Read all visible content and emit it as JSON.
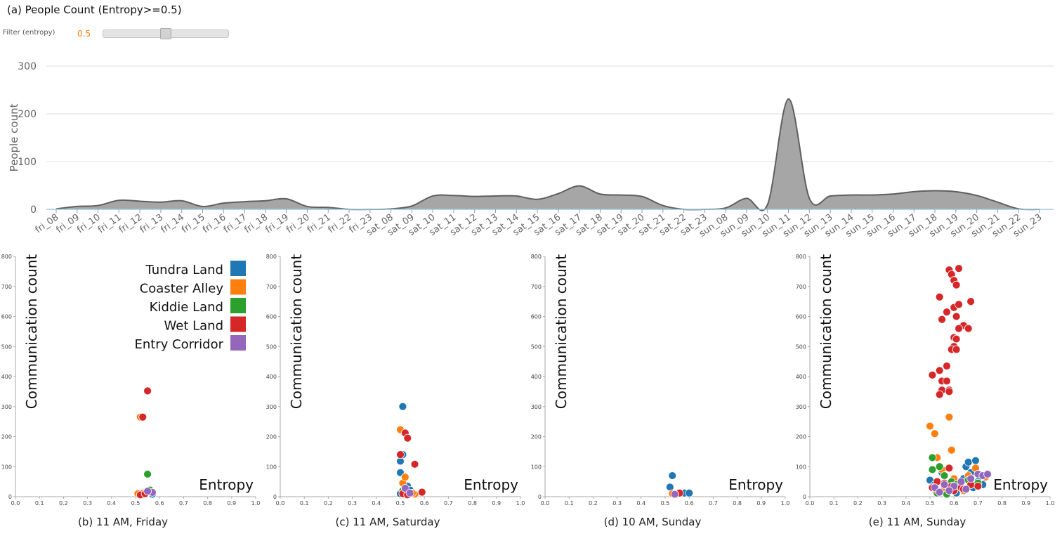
{
  "page": {
    "title": "(a) People  Count (Entropy>=0.5)",
    "filter": {
      "label": "Filter (entropy)",
      "value": "0.5",
      "slider_value": 0.5
    }
  },
  "colors": {
    "area_fill": "#a6a6a6",
    "area_stroke": "#5f5f5f",
    "grid": "#dcdcdc",
    "axis": "#9ecae1",
    "tick_text": "#666666",
    "filter_value": "#ff7f0e"
  },
  "chart_data": [
    {
      "id": "a",
      "type": "area",
      "title": "(a) People  Count (Entropy>=0.5)",
      "ylabel": "People count",
      "xlabel": "",
      "ylim": [
        0,
        300
      ],
      "yticks": [
        0,
        100,
        200,
        300
      ],
      "grid": true,
      "categories": [
        "fri_08",
        "fri_09",
        "fri_10",
        "fri_11",
        "fri_12",
        "fri_13",
        "fri_14",
        "fri_15",
        "fri_16",
        "fri_17",
        "fri_18",
        "fri_19",
        "fri_20",
        "fri_21",
        "fri_22",
        "fri_23",
        "sat_08",
        "sat_09",
        "sat_10",
        "sat_11",
        "sat_12",
        "sat_13",
        "sat_14",
        "sat_15",
        "sat_16",
        "sat_17",
        "sat_18",
        "sat_19",
        "sat_20",
        "sat_21",
        "sat_22",
        "sat_23",
        "sun_08",
        "sun_09",
        "sun_10",
        "sun_11",
        "sun_12",
        "sun_13",
        "sun_14",
        "sun_15",
        "sun_16",
        "sun_17",
        "sun_18",
        "sun_19",
        "sun_20",
        "sun_21",
        "sun_22",
        "sun_23"
      ],
      "values": [
        1,
        6,
        8,
        19,
        17,
        15,
        18,
        6,
        13,
        16,
        18,
        22,
        6,
        4,
        0,
        0,
        1,
        7,
        28,
        29,
        27,
        28,
        28,
        21,
        33,
        49,
        32,
        30,
        27,
        8,
        0,
        0,
        3,
        23,
        10,
        231,
        23,
        28,
        30,
        30,
        32,
        37,
        39,
        37,
        29,
        15,
        1,
        0
      ]
    },
    {
      "id": "b",
      "type": "scatter",
      "caption": "(b) 11 AM, Friday",
      "xlabel": "Entropy",
      "ylabel": "Communication count",
      "xlim": [
        0.0,
        1.0
      ],
      "ylim": [
        0,
        800
      ],
      "xticks": [
        "0.0",
        "0.1",
        "0.2",
        "0.3",
        "0.4",
        "0.5",
        "0.6",
        "0.7",
        "0.8",
        "0.9",
        "1.0"
      ],
      "yticks": [
        "0",
        "100",
        "200",
        "300",
        "400",
        "500",
        "600",
        "700",
        "800"
      ],
      "legend": {
        "placement": "top-right",
        "entries": [
          {
            "name": "Tundra Land",
            "color": "#1f77b4"
          },
          {
            "name": "Coaster Alley",
            "color": "#ff7f0e"
          },
          {
            "name": "Kiddie Land",
            "color": "#2ca02c"
          },
          {
            "name": "Wet Land",
            "color": "#d62728"
          },
          {
            "name": "Entry Corridor",
            "color": "#9467bd"
          }
        ]
      },
      "series": [
        {
          "name": "Tundra Land",
          "color": "#1f77b4",
          "points": [
            [
              0.56,
              12
            ],
            [
              0.57,
              8
            ],
            [
              0.55,
              15
            ],
            [
              0.53,
              6
            ]
          ]
        },
        {
          "name": "Coaster Alley",
          "color": "#ff7f0e",
          "points": [
            [
              0.52,
              265
            ],
            [
              0.51,
              10
            ],
            [
              0.53,
              12
            ]
          ]
        },
        {
          "name": "Kiddie Land",
          "color": "#2ca02c",
          "points": [
            [
              0.55,
              75
            ],
            [
              0.56,
              22
            ],
            [
              0.54,
              8
            ]
          ]
        },
        {
          "name": "Wet Land",
          "color": "#d62728",
          "points": [
            [
              0.55,
              352
            ],
            [
              0.53,
              265
            ],
            [
              0.52,
              6
            ],
            [
              0.54,
              10
            ]
          ]
        },
        {
          "name": "Entry Corridor",
          "color": "#9467bd",
          "points": [
            [
              0.57,
              14
            ],
            [
              0.55,
              18
            ]
          ]
        }
      ]
    },
    {
      "id": "c",
      "type": "scatter",
      "caption": "(c) 11 AM, Saturday",
      "xlabel": "Entropy",
      "ylabel": "Communication count",
      "xlim": [
        0.0,
        1.0
      ],
      "ylim": [
        0,
        800
      ],
      "xticks": [
        "0.0",
        "0.1",
        "0.2",
        "0.3",
        "0.4",
        "0.5",
        "0.6",
        "0.7",
        "0.8",
        "0.9",
        "1.0"
      ],
      "yticks": [
        "0",
        "100",
        "200",
        "300",
        "400",
        "500",
        "600",
        "700",
        "800"
      ],
      "series": [
        {
          "name": "Tundra Land",
          "color": "#1f77b4",
          "points": [
            [
              0.51,
              300
            ],
            [
              0.51,
              140
            ],
            [
              0.5,
              118
            ],
            [
              0.5,
              80
            ],
            [
              0.53,
              35
            ],
            [
              0.54,
              22
            ],
            [
              0.52,
              15
            ],
            [
              0.5,
              10
            ]
          ]
        },
        {
          "name": "Coaster Alley",
          "color": "#ff7f0e",
          "points": [
            [
              0.5,
              223
            ],
            [
              0.51,
              45
            ],
            [
              0.52,
              65
            ],
            [
              0.56,
              8
            ],
            [
              0.55,
              12
            ]
          ]
        },
        {
          "name": "Kiddie Land",
          "color": "#2ca02c",
          "points": [
            [
              0.51,
              20
            ],
            [
              0.53,
              8
            ]
          ]
        },
        {
          "name": "Wet Land",
          "color": "#d62728",
          "points": [
            [
              0.52,
              212
            ],
            [
              0.53,
              195
            ],
            [
              0.56,
              108
            ],
            [
              0.59,
              15
            ],
            [
              0.5,
              140
            ],
            [
              0.51,
              10
            ],
            [
              0.53,
              6
            ]
          ]
        },
        {
          "name": "Entry Corridor",
          "color": "#9467bd",
          "points": [
            [
              0.52,
              28
            ],
            [
              0.54,
              12
            ]
          ]
        }
      ]
    },
    {
      "id": "d",
      "type": "scatter",
      "caption": "(d) 10 AM, Sunday",
      "xlabel": "Entropy",
      "ylabel": "Communication count",
      "xlim": [
        0.0,
        1.0
      ],
      "ylim": [
        0,
        800
      ],
      "xticks": [
        "0.0",
        "0.1",
        "0.2",
        "0.3",
        "0.4",
        "0.5",
        "0.6",
        "0.7",
        "0.8",
        "0.9",
        "1.0"
      ],
      "yticks": [
        "0",
        "100",
        "200",
        "300",
        "400",
        "500",
        "600",
        "700",
        "800"
      ],
      "series": [
        {
          "name": "Tundra Land",
          "color": "#1f77b4",
          "points": [
            [
              0.53,
              70
            ],
            [
              0.52,
              32
            ],
            [
              0.58,
              12
            ],
            [
              0.6,
              12
            ],
            [
              0.54,
              10
            ]
          ]
        },
        {
          "name": "Coaster Alley",
          "color": "#ff7f0e",
          "points": [
            [
              0.53,
              10
            ],
            [
              0.55,
              12
            ]
          ]
        },
        {
          "name": "Kiddie Land",
          "color": "#2ca02c",
          "points": []
        },
        {
          "name": "Wet Land",
          "color": "#d62728",
          "points": [
            [
              0.55,
              10
            ],
            [
              0.56,
              12
            ]
          ]
        },
        {
          "name": "Entry Corridor",
          "color": "#9467bd",
          "points": [
            [
              0.54,
              8
            ]
          ]
        }
      ]
    },
    {
      "id": "e",
      "type": "scatter",
      "caption": "(e) 11 AM, Sunday",
      "xlabel": "Entropy",
      "ylabel": "Communication count",
      "xlim": [
        0.0,
        1.0
      ],
      "ylim": [
        0,
        800
      ],
      "xticks": [
        "0.0",
        "0.1",
        "0.2",
        "0.3",
        "0.4",
        "0.5",
        "0.6",
        "0.7",
        "0.8",
        "0.9",
        "1.0"
      ],
      "yticks": [
        "0",
        "100",
        "200",
        "300",
        "400",
        "500",
        "600",
        "700",
        "800"
      ],
      "series": [
        {
          "name": "Tundra Land",
          "color": "#1f77b4",
          "points": [
            [
              0.5,
              55
            ],
            [
              0.52,
              40
            ],
            [
              0.55,
              80
            ],
            [
              0.58,
              30
            ],
            [
              0.6,
              25
            ],
            [
              0.62,
              35
            ],
            [
              0.65,
              100
            ],
            [
              0.66,
              115
            ],
            [
              0.69,
              120
            ],
            [
              0.67,
              80
            ],
            [
              0.64,
              60
            ],
            [
              0.7,
              50
            ],
            [
              0.72,
              40
            ],
            [
              0.53,
              20
            ],
            [
              0.57,
              15
            ],
            [
              0.61,
              12
            ],
            [
              0.68,
              30
            ]
          ]
        },
        {
          "name": "Coaster Alley",
          "color": "#ff7f0e",
          "points": [
            [
              0.5,
              235
            ],
            [
              0.52,
              210
            ],
            [
              0.58,
              265
            ],
            [
              0.59,
              155
            ],
            [
              0.53,
              130
            ],
            [
              0.55,
              90
            ],
            [
              0.6,
              60
            ],
            [
              0.62,
              40
            ],
            [
              0.66,
              70
            ],
            [
              0.69,
              95
            ],
            [
              0.73,
              65
            ],
            [
              0.56,
              25
            ],
            [
              0.64,
              20
            ]
          ]
        },
        {
          "name": "Kiddie Land",
          "color": "#2ca02c",
          "points": [
            [
              0.51,
              130
            ],
            [
              0.51,
              90
            ],
            [
              0.54,
              100
            ],
            [
              0.56,
              70
            ],
            [
              0.59,
              50
            ],
            [
              0.61,
              40
            ],
            [
              0.66,
              55
            ],
            [
              0.7,
              45
            ],
            [
              0.53,
              12
            ],
            [
              0.57,
              8
            ]
          ]
        },
        {
          "name": "Wet Land",
          "color": "#d62728",
          "points": [
            [
              0.58,
              755
            ],
            [
              0.62,
              760
            ],
            [
              0.59,
              740
            ],
            [
              0.6,
              720
            ],
            [
              0.61,
              705
            ],
            [
              0.67,
              650
            ],
            [
              0.54,
              665
            ],
            [
              0.6,
              630
            ],
            [
              0.62,
              640
            ],
            [
              0.57,
              615
            ],
            [
              0.61,
              600
            ],
            [
              0.55,
              590
            ],
            [
              0.64,
              570
            ],
            [
              0.62,
              560
            ],
            [
              0.6,
              530
            ],
            [
              0.61,
              525
            ],
            [
              0.6,
              500
            ],
            [
              0.59,
              490
            ],
            [
              0.61,
              490
            ],
            [
              0.54,
              420
            ],
            [
              0.57,
              435
            ],
            [
              0.51,
              405
            ],
            [
              0.55,
              385
            ],
            [
              0.57,
              385
            ],
            [
              0.55,
              355
            ],
            [
              0.58,
              355
            ],
            [
              0.54,
              340
            ],
            [
              0.58,
              350
            ],
            [
              0.66,
              560
            ],
            [
              0.53,
              50
            ],
            [
              0.56,
              45
            ],
            [
              0.59,
              35
            ],
            [
              0.63,
              30
            ],
            [
              0.67,
              40
            ],
            [
              0.7,
              35
            ],
            [
              0.52,
              25
            ],
            [
              0.6,
              20
            ],
            [
              0.64,
              25
            ],
            [
              0.58,
              95
            ],
            [
              0.51,
              30
            ]
          ]
        },
        {
          "name": "Entry Corridor",
          "color": "#9467bd",
          "points": [
            [
              0.52,
              30
            ],
            [
              0.56,
              40
            ],
            [
              0.6,
              35
            ],
            [
              0.63,
              50
            ],
            [
              0.67,
              60
            ],
            [
              0.7,
              75
            ],
            [
              0.72,
              70
            ],
            [
              0.74,
              75
            ],
            [
              0.58,
              20
            ],
            [
              0.65,
              25
            ],
            [
              0.54,
              15
            ]
          ]
        }
      ]
    }
  ]
}
